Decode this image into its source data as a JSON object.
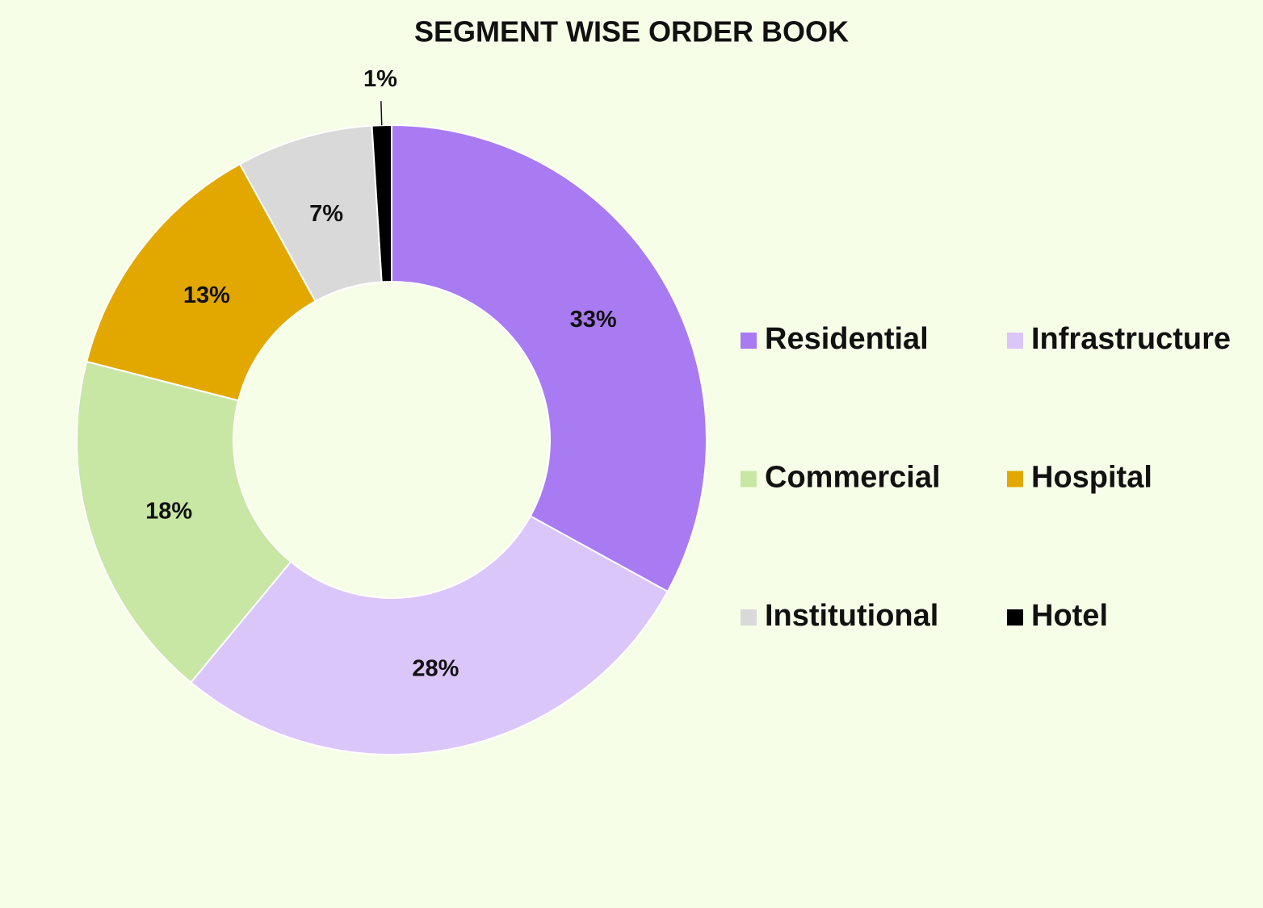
{
  "chart_data": {
    "type": "donut",
    "title": "SEGMENT WISE ORDER BOOK",
    "categories": [
      "Residential",
      "Infrastructure",
      "Commercial",
      "Hospital",
      "Institutional",
      "Hotel"
    ],
    "values": [
      33,
      28,
      18,
      13,
      7,
      1
    ],
    "value_labels": [
      "33%",
      "28%",
      "18%",
      "13%",
      "7%",
      "1%"
    ],
    "colors": [
      "#a87bf2",
      "#dbc6fa",
      "#c8e6a4",
      "#e2a800",
      "#d9d9d9",
      "#000000"
    ],
    "legend": "right"
  }
}
